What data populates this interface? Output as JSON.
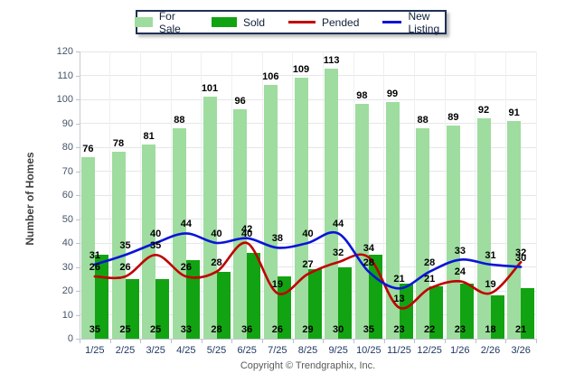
{
  "chart_data": {
    "type": "combo-bar-line",
    "categories": [
      "1/25",
      "2/25",
      "3/25",
      "4/25",
      "5/25",
      "6/25",
      "7/25",
      "8/25",
      "9/25",
      "10/25",
      "11/25",
      "12/25",
      "1/26",
      "2/26",
      "3/26"
    ],
    "series": [
      {
        "name": "For Sale",
        "type": "bar",
        "color": "#9FDC9F",
        "values": [
          76,
          78,
          81,
          88,
          101,
          96,
          106,
          109,
          113,
          98,
          99,
          88,
          89,
          92,
          91
        ]
      },
      {
        "name": "Sold",
        "type": "bar",
        "color": "#12A312",
        "values": [
          35,
          25,
          25,
          33,
          28,
          36,
          26,
          29,
          30,
          35,
          23,
          22,
          23,
          18,
          21
        ]
      },
      {
        "name": "Pended",
        "type": "line",
        "color": "#C00000",
        "values": [
          26,
          26,
          35,
          26,
          28,
          40,
          19,
          27,
          32,
          34,
          13,
          21,
          24,
          19,
          32
        ]
      },
      {
        "name": "New Listing",
        "type": "line",
        "color": "#0A14D8",
        "values": [
          31,
          35,
          40,
          44,
          40,
          42,
          38,
          40,
          44,
          28,
          21,
          28,
          33,
          31,
          30
        ]
      }
    ],
    "ylabel": "Number of Homes",
    "ylim": [
      0,
      120
    ],
    "ytick_step": 10,
    "grid": true,
    "legend_position": "top-center"
  },
  "footer": {
    "copyright": "Copyright © Trendgraphix, Inc."
  }
}
